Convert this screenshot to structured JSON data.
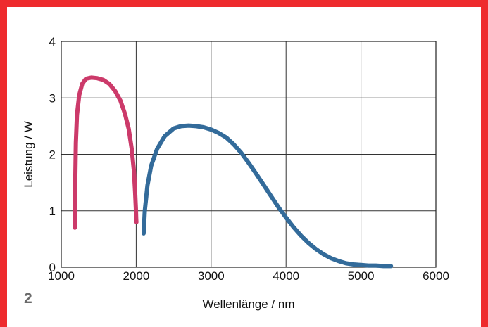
{
  "figure_label": "2",
  "chart_data": {
    "type": "line",
    "xlabel": "Wellenlänge / nm",
    "ylabel": "Leistung / W",
    "xlim": [
      1000,
      6000
    ],
    "ylim": [
      0,
      4
    ],
    "xticks": [
      1000,
      2000,
      3000,
      4000,
      5000,
      6000
    ],
    "yticks": [
      0,
      1,
      2,
      3,
      4
    ],
    "grid": true,
    "series": [
      {
        "color": "#cc3a6a",
        "x": [
          1180,
          1185,
          1195,
          1210,
          1240,
          1280,
          1330,
          1400,
          1480,
          1560,
          1640,
          1720,
          1790,
          1850,
          1900,
          1940,
          1970,
          1985,
          1995,
          2000,
          2003
        ],
        "y": [
          0.7,
          1.4,
          2.2,
          2.7,
          3.05,
          3.25,
          3.34,
          3.36,
          3.35,
          3.32,
          3.25,
          3.12,
          2.95,
          2.72,
          2.45,
          2.1,
          1.7,
          1.35,
          1.05,
          0.85,
          0.8
        ]
      },
      {
        "color": "#336b9a",
        "x": [
          2100,
          2115,
          2150,
          2200,
          2280,
          2380,
          2500,
          2600,
          2700,
          2800,
          2900,
          3000,
          3100,
          3200,
          3300,
          3400,
          3500,
          3600,
          3700,
          3800,
          3900,
          4000,
          4100,
          4200,
          4300,
          4400,
          4500,
          4600,
          4700,
          4800,
          4900,
          5000,
          5100,
          5200,
          5300,
          5400
        ],
        "y": [
          0.6,
          1.0,
          1.45,
          1.8,
          2.1,
          2.32,
          2.46,
          2.5,
          2.51,
          2.5,
          2.48,
          2.44,
          2.38,
          2.3,
          2.18,
          2.03,
          1.85,
          1.66,
          1.46,
          1.26,
          1.06,
          0.88,
          0.71,
          0.56,
          0.43,
          0.32,
          0.23,
          0.16,
          0.11,
          0.07,
          0.05,
          0.04,
          0.03,
          0.03,
          0.02,
          0.02
        ]
      }
    ]
  }
}
